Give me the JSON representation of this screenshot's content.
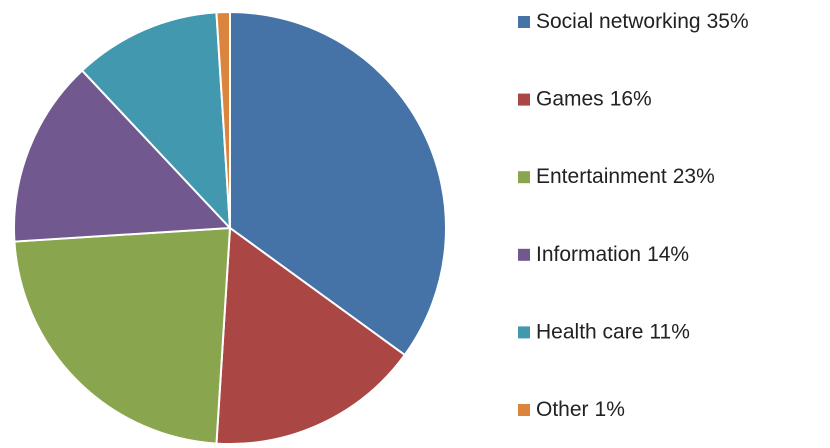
{
  "chart_data": {
    "type": "pie",
    "categories": [
      "Social networking",
      "Games",
      "Entertainment",
      "Information",
      "Health care",
      "Other"
    ],
    "values": [
      35,
      16,
      23,
      14,
      11,
      1
    ],
    "value_labels": [
      "35%",
      "16%",
      "23%",
      "14%",
      "11%",
      "1%"
    ],
    "colors": [
      "#4572a7",
      "#aa4643",
      "#89a54e",
      "#71588f",
      "#4198af",
      "#db843d"
    ],
    "legend": "right"
  }
}
